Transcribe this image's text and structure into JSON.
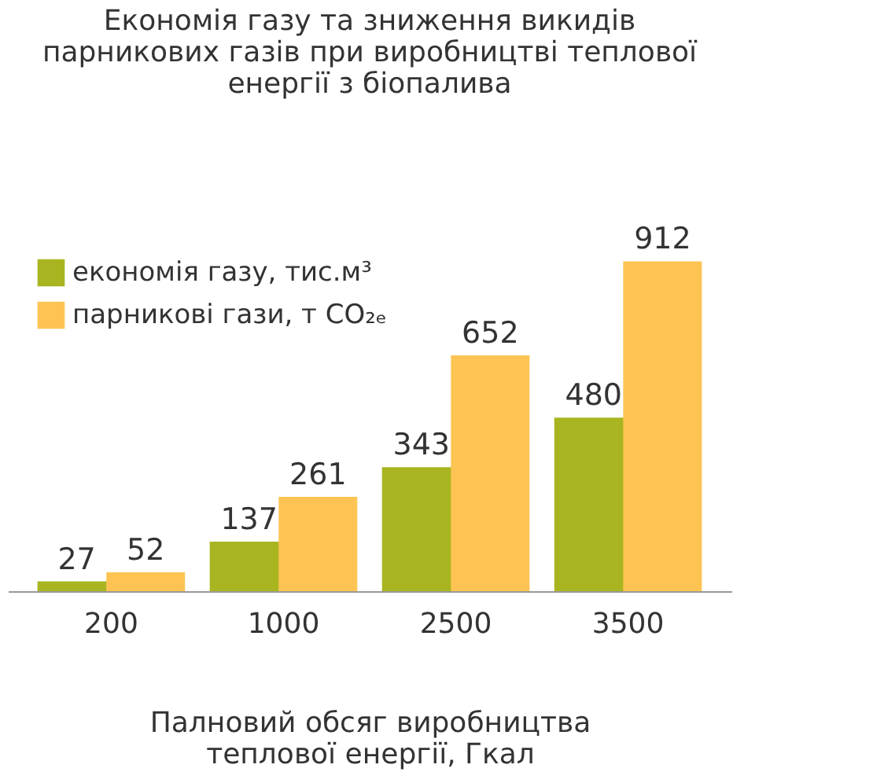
{
  "chart_data": {
    "type": "bar",
    "title": [
      "Економія газу та зниження викидів",
      "парникових газів при виробництві теплової",
      "енергії з біопалива"
    ],
    "xlabel": [
      "Палновий обсяг виробництва",
      "теплової енергії, Гкал"
    ],
    "categories": [
      "200",
      "1000",
      "2500",
      "3500"
    ],
    "series": [
      {
        "name": "економія газу, тис.м³",
        "color": "#a9b520",
        "values": [
          27,
          137,
          343,
          480
        ]
      },
      {
        "name": "парникові гази, т CO₂ₑ",
        "color": "#fdc453",
        "values": [
          52,
          261,
          652,
          912
        ]
      }
    ],
    "data_labels": true,
    "legend": "top left",
    "grid": false
  }
}
